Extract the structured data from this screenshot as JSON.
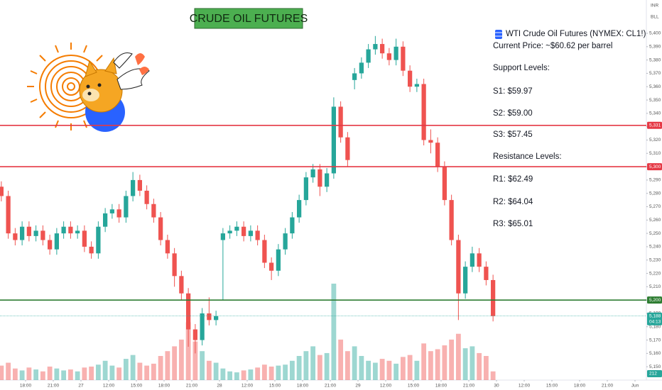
{
  "chart_data": {
    "type": "candlestick",
    "title": "CRUDE OIL FUTURES",
    "axis_labels": [
      "INR",
      "BLL"
    ],
    "up_color": "#26a69a",
    "down_color": "#ef5350",
    "grid": false,
    "xlim": [
      -0.923,
      22.41
    ],
    "xticks": [
      {
        "value": 0,
        "label": "18:00"
      },
      {
        "value": 1,
        "label": "21:00"
      },
      {
        "value": 2,
        "label": "27"
      },
      {
        "value": 3,
        "label": "12:00"
      },
      {
        "value": 4,
        "label": "15:00"
      },
      {
        "value": 5,
        "label": "18:00"
      },
      {
        "value": 6,
        "label": "21:00"
      },
      {
        "value": 7,
        "label": "28"
      },
      {
        "value": 8,
        "label": "12:00"
      },
      {
        "value": 9,
        "label": "15:00"
      },
      {
        "value": 10,
        "label": "18:00"
      },
      {
        "value": 11,
        "label": "21:00"
      },
      {
        "value": 12,
        "label": "29"
      },
      {
        "value": 13,
        "label": "12:00"
      },
      {
        "value": 14,
        "label": "15:00"
      },
      {
        "value": 15,
        "label": "18:00"
      },
      {
        "value": 16,
        "label": "21:00"
      },
      {
        "value": 17,
        "label": "30"
      },
      {
        "value": 18,
        "label": "12:00"
      },
      {
        "value": 19,
        "label": "15:00"
      },
      {
        "value": 20,
        "label": "18:00"
      },
      {
        "value": 21,
        "label": "21:00"
      },
      {
        "value": 22,
        "label": "Jun"
      }
    ],
    "ylim": [
      5140,
      5425
    ],
    "yticks": [
      {
        "value": 5150,
        "label": "5,150"
      },
      {
        "value": 5160,
        "label": "5,160"
      },
      {
        "value": 5170,
        "label": "5,170"
      },
      {
        "value": 5180,
        "label": "5,180"
      },
      {
        "value": 5190,
        "label": "5,190"
      },
      {
        "value": 5200,
        "label": "5,200"
      },
      {
        "value": 5210,
        "label": "5,210"
      },
      {
        "value": 5220,
        "label": "5,220"
      },
      {
        "value": 5230,
        "label": "5,230"
      },
      {
        "value": 5240,
        "label": "5,240"
      },
      {
        "value": 5250,
        "label": "5,250"
      },
      {
        "value": 5260,
        "label": "5,260"
      },
      {
        "value": 5270,
        "label": "5,270"
      },
      {
        "value": 5280,
        "label": "5,280"
      },
      {
        "value": 5290,
        "label": "5,290"
      },
      {
        "value": 5300,
        "label": "5,300"
      },
      {
        "value": 5310,
        "label": "5,310"
      },
      {
        "value": 5320,
        "label": "5,320"
      },
      {
        "value": 5330,
        "label": "5,330"
      },
      {
        "value": 5340,
        "label": "5,340"
      },
      {
        "value": 5350,
        "label": "5,350"
      },
      {
        "value": 5360,
        "label": "5,360"
      },
      {
        "value": 5370,
        "label": "5,370"
      },
      {
        "value": 5380,
        "label": "5,380"
      },
      {
        "value": 5390,
        "label": "5,390"
      },
      {
        "value": 5400,
        "label": "5,400"
      }
    ],
    "x": [
      -0.875,
      -0.625,
      -0.375,
      -0.125,
      0.125,
      0.375,
      0.625,
      0.875,
      1.125,
      1.375,
      1.625,
      1.875,
      2.125,
      2.375,
      2.625,
      2.875,
      3.125,
      3.375,
      3.625,
      3.875,
      4.125,
      4.375,
      4.625,
      4.875,
      5.125,
      5.375,
      5.625,
      5.875,
      6.125,
      6.375,
      6.625,
      6.875,
      7.125,
      7.375,
      7.625,
      7.875,
      8.125,
      8.375,
      8.625,
      8.875,
      9.125,
      9.375,
      9.625,
      9.875,
      10.125,
      10.375,
      10.625,
      10.875,
      11.125,
      11.375,
      11.625,
      11.875,
      12.125,
      12.375,
      12.625,
      12.875,
      13.125,
      13.375,
      13.625,
      13.875,
      14.125,
      14.375,
      14.625,
      14.875,
      15.125,
      15.375,
      15.625,
      15.875,
      16.125,
      16.375,
      16.625,
      16.875
    ],
    "open": [
      5285,
      5278,
      5250,
      5245,
      5255,
      5248,
      5252,
      5245,
      5238,
      5250,
      5255,
      5250,
      5252,
      5240,
      5235,
      5255,
      5265,
      5268,
      5262,
      5278,
      5290,
      5282,
      5272,
      5262,
      5245,
      5235,
      5218,
      5205,
      5178,
      5170,
      5190,
      5185,
      5245,
      5250,
      5252,
      5255,
      5248,
      5252,
      5245,
      5228,
      5222,
      5238,
      5250,
      5262,
      5275,
      5292,
      5298,
      5285,
      5295,
      5345,
      5322,
      5365,
      5370,
      5378,
      5388,
      5392,
      5385,
      5380,
      5390,
      5372,
      5360,
      5362,
      5320,
      5318,
      5300,
      5275,
      5245,
      5205,
      5225,
      5235,
      5225,
      5215
    ],
    "high": [
      5289,
      5282,
      5254,
      5259,
      5259,
      5256,
      5256,
      5249,
      5254,
      5259,
      5259,
      5256,
      5256,
      5244,
      5259,
      5269,
      5272,
      5272,
      5282,
      5296,
      5294,
      5286,
      5276,
      5266,
      5249,
      5239,
      5222,
      5209,
      5182,
      5194,
      5202,
      5192,
      5254,
      5256,
      5259,
      5259,
      5256,
      5256,
      5249,
      5232,
      5242,
      5254,
      5266,
      5279,
      5296,
      5302,
      5302,
      5299,
      5352,
      5349,
      5326,
      5374,
      5382,
      5392,
      5398,
      5396,
      5389,
      5396,
      5394,
      5376,
      5366,
      5366,
      5328,
      5322,
      5304,
      5279,
      5249,
      5229,
      5240,
      5239,
      5229,
      5219
    ],
    "low": [
      5274,
      5246,
      5241,
      5241,
      5244,
      5244,
      5241,
      5234,
      5234,
      5246,
      5246,
      5246,
      5236,
      5231,
      5231,
      5251,
      5261,
      5258,
      5258,
      5274,
      5278,
      5268,
      5258,
      5241,
      5231,
      5210,
      5200,
      5165,
      5160,
      5166,
      5181,
      5181,
      5200,
      5246,
      5248,
      5244,
      5244,
      5241,
      5224,
      5215,
      5218,
      5234,
      5246,
      5258,
      5271,
      5288,
      5278,
      5281,
      5291,
      5318,
      5300,
      5358,
      5366,
      5374,
      5384,
      5381,
      5376,
      5376,
      5368,
      5356,
      5356,
      5316,
      5310,
      5296,
      5271,
      5241,
      5185,
      5201,
      5221,
      5221,
      5211,
      5184
    ],
    "close": [
      5278,
      5250,
      5245,
      5255,
      5248,
      5252,
      5245,
      5238,
      5250,
      5255,
      5250,
      5252,
      5240,
      5235,
      5255,
      5265,
      5268,
      5262,
      5278,
      5290,
      5282,
      5272,
      5262,
      5245,
      5235,
      5218,
      5205,
      5178,
      5170,
      5190,
      5185,
      5188,
      5250,
      5252,
      5255,
      5248,
      5252,
      5245,
      5228,
      5222,
      5238,
      5250,
      5262,
      5275,
      5292,
      5298,
      5285,
      5295,
      5345,
      5322,
      5305,
      5370,
      5378,
      5388,
      5392,
      5385,
      5380,
      5390,
      5372,
      5360,
      5362,
      5320,
      5318,
      5300,
      5275,
      5245,
      5205,
      5225,
      5235,
      5225,
      5215,
      5188
    ],
    "volume": [
      150,
      180,
      120,
      100,
      130,
      110,
      90,
      140,
      120,
      100,
      110,
      90,
      130,
      140,
      160,
      200,
      150,
      130,
      220,
      260,
      180,
      150,
      170,
      250,
      300,
      350,
      420,
      600,
      400,
      300,
      200,
      180,
      120,
      90,
      80,
      100,
      110,
      130,
      160,
      140,
      150,
      160,
      200,
      250,
      300,
      350,
      260,
      280,
      1000,
      420,
      300,
      350,
      250,
      200,
      180,
      220,
      200,
      170,
      240,
      260,
      200,
      380,
      300,
      320,
      360,
      420,
      480,
      330,
      350,
      280,
      250,
      90
    ],
    "volume_lim": [
      0,
      1000
    ],
    "volume_badge": "212",
    "level_lines": [
      {
        "value": 5331,
        "label": "5,331",
        "color": "#e53945"
      },
      {
        "value": 5300,
        "label": "5,300",
        "color": "#e53945"
      },
      {
        "value": 5200,
        "label": "5,200",
        "color": "#2e7d32"
      }
    ],
    "last_price": {
      "value": 5188,
      "label": "5,188",
      "countdown": "04:13",
      "color": "#26a69a"
    },
    "annotations": [
      "WTI Crude Oil Futures (NYMEX: CL1!)",
      "Current Price: ~$60.62 per barrel",
      "Support Levels:",
      "S1: $59.97",
      "S2: $59.00",
      "S3: $57.45",
      "Resistance Levels:",
      "R1: $62.49",
      "R2: $64.04",
      "R3: $65.01"
    ]
  }
}
